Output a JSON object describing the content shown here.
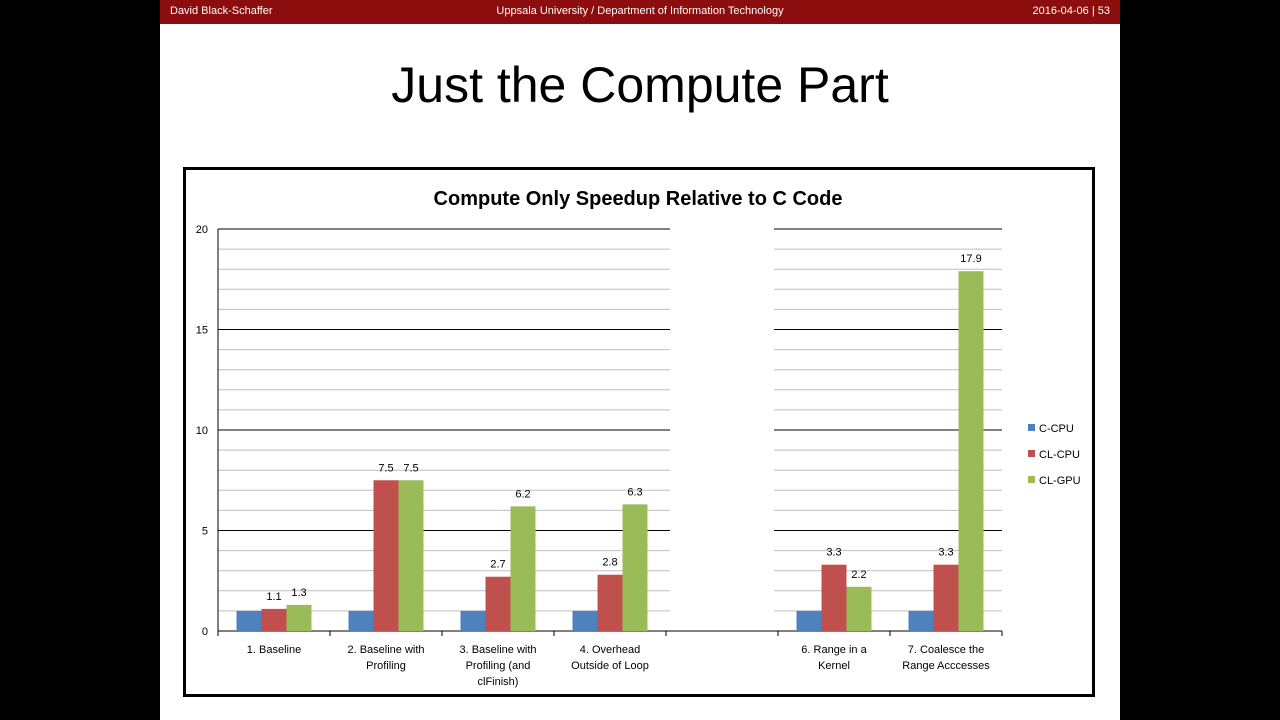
{
  "header": {
    "author": "David Black-Schaffer",
    "institution": "Uppsala University / Department of Information Technology",
    "date_page": "2016-04-06 | 53"
  },
  "slide": {
    "title": "Just the Compute Part"
  },
  "chart_data": {
    "type": "bar",
    "title": "Compute Only Speedup Relative to C Code",
    "xlabel": "",
    "ylabel": "",
    "ylim": [
      0,
      20
    ],
    "yticks": [
      0,
      5,
      10,
      15,
      20
    ],
    "grid": true,
    "legend_position": "right",
    "categories": [
      "1. Baseline",
      "2. Baseline with Profiling",
      "3. Baseline with Profiling (and clFinish)",
      "4. Overhead Outside of Loop",
      "",
      "6. Range in a Kernel",
      "7. Coalesce the Range Acccesses"
    ],
    "series": [
      {
        "name": "C-CPU",
        "color": "#4f81bd",
        "values": [
          1,
          1,
          1,
          1,
          null,
          1,
          1
        ],
        "labels": [
          "",
          "",
          "",
          "",
          "",
          "",
          ""
        ]
      },
      {
        "name": "CL-CPU",
        "color": "#c0504d",
        "values": [
          1.1,
          7.5,
          2.7,
          2.8,
          null,
          3.3,
          3.3
        ],
        "labels": [
          "1.1",
          "7.5",
          "2.7",
          "2.8",
          "",
          "3.3",
          "3.3"
        ]
      },
      {
        "name": "CL-GPU",
        "color": "#9bbb59",
        "values": [
          1.3,
          7.5,
          6.2,
          6.3,
          null,
          2.2,
          17.9
        ],
        "labels": [
          "1.3",
          "7.5",
          "6.2",
          "6.3",
          "",
          "2.2",
          "17.9"
        ]
      }
    ]
  }
}
